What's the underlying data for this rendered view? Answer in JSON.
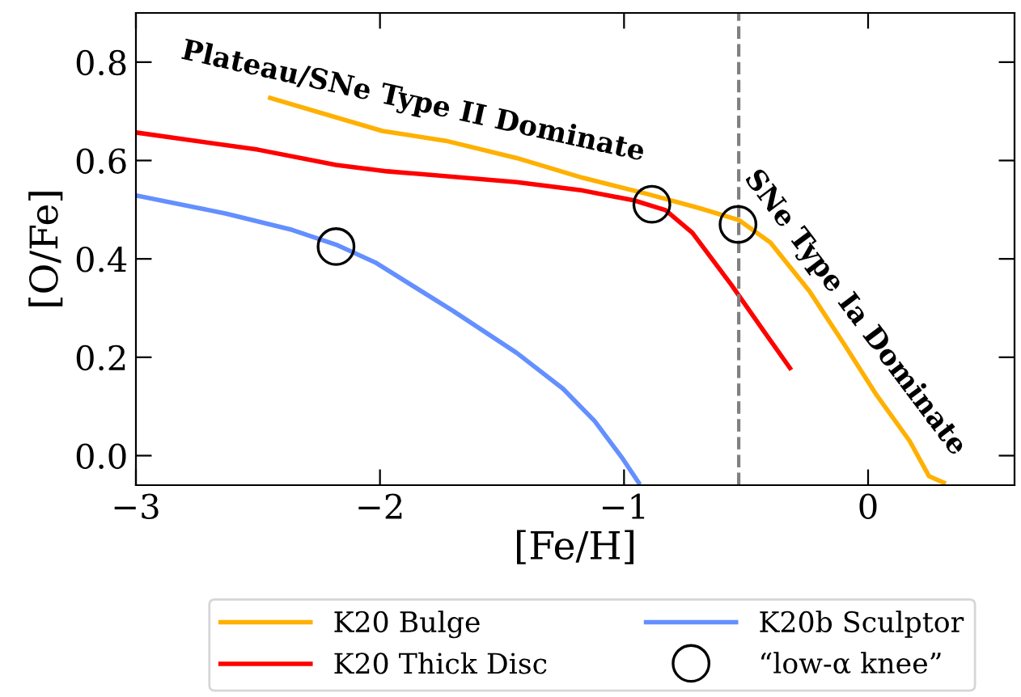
{
  "chart_data": {
    "type": "line",
    "xlabel": "[Fe/H]",
    "ylabel": "[O/Fe]",
    "xlim": [
      -3,
      0.6
    ],
    "ylim": [
      -0.06,
      0.9
    ],
    "xticks": [
      {
        "value": -3,
        "label": "−3"
      },
      {
        "value": -2,
        "label": "−2"
      },
      {
        "value": -1,
        "label": "−1"
      },
      0
    ],
    "yticks": [
      {
        "value": 0,
        "label": "0.0"
      },
      0.2,
      0.4,
      0.6,
      0.8
    ],
    "grid": false,
    "legend": "bottom",
    "series": [
      {
        "name": "K20 Bulge",
        "color": "#ffb000",
        "x": [
          -2.45,
          -1.99,
          -1.73,
          -1.44,
          -1.17,
          -0.905,
          -0.69,
          -0.53,
          -0.4,
          -0.24,
          -0.1,
          0.035,
          0.17,
          0.25,
          0.31
        ],
        "values": [
          0.727,
          0.66,
          0.64,
          0.605,
          0.565,
          0.532,
          0.503,
          0.479,
          0.433,
          0.334,
          0.228,
          0.123,
          0.03,
          -0.042,
          -0.055
        ]
      },
      {
        "name": "K20 Thick Disc",
        "color": "#ff0000",
        "x": [
          -3,
          -2.5,
          -2.18,
          -1.97,
          -1.44,
          -1.17,
          -0.96,
          -0.83,
          -0.72,
          -0.56,
          -0.43,
          -0.32
        ],
        "values": [
          0.657,
          0.622,
          0.591,
          0.578,
          0.556,
          0.539,
          0.519,
          0.499,
          0.453,
          0.347,
          0.255,
          0.178
        ]
      },
      {
        "name": "K20b Sculptor",
        "color": "#648fff",
        "x": [
          -3,
          -2.63,
          -2.36,
          -2.18,
          -2.02,
          -1.7,
          -1.44,
          -1.25,
          -1.12,
          -1.01,
          -0.94
        ],
        "values": [
          0.529,
          0.492,
          0.459,
          0.429,
          0.393,
          0.294,
          0.209,
          0.136,
          0.07,
          -0.003,
          -0.055
        ]
      },
      {
        "name": "“low-α knee”",
        "type": "scatter",
        "color": "#000000",
        "marker": "circle",
        "x": [
          -2.18,
          -0.886,
          -0.533
        ],
        "values": [
          0.425,
          0.511,
          0.47
        ]
      }
    ],
    "ref_lines": [
      {
        "axis": "x",
        "value": -0.53,
        "color": "#808080",
        "line_style": "dashed"
      }
    ],
    "annotations": [
      "Plateau/SNe Type II Dominate",
      "SNe Type Ia Dominate"
    ]
  }
}
